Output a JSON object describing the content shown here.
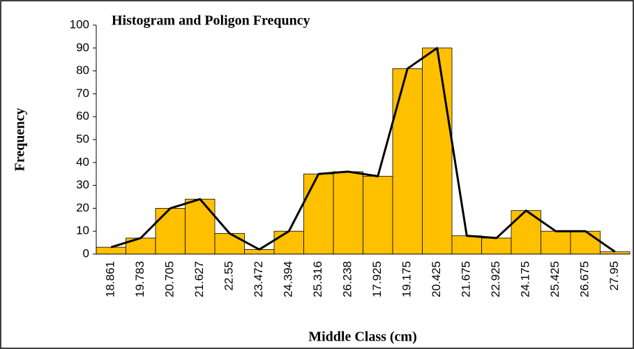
{
  "chart_data": {
    "type": "bar",
    "title": "Histogram and Poligon Frequncy",
    "x_label": "Middle Class (cm)",
    "y_label": "Frequency",
    "categories": [
      "18.861",
      "19.783",
      "20.705",
      "21.627",
      "22.55",
      "23.472",
      "24.394",
      "25.316",
      "26.238",
      "17.925",
      "19.175",
      "20.425",
      "21.675",
      "22.925",
      "24.175",
      "25.425",
      "26.675",
      "27.95"
    ],
    "values": [
      3,
      7,
      20,
      24,
      9,
      2,
      10,
      35,
      36,
      34,
      81,
      90,
      8,
      7,
      19,
      10,
      10,
      1
    ],
    "bar_color": "#ffc000",
    "line_color": "#000000",
    "ylim": [
      0,
      100
    ],
    "yticks": [
      0,
      10,
      20,
      30,
      40,
      50,
      60,
      70,
      80,
      90,
      100
    ],
    "grid": false
  }
}
